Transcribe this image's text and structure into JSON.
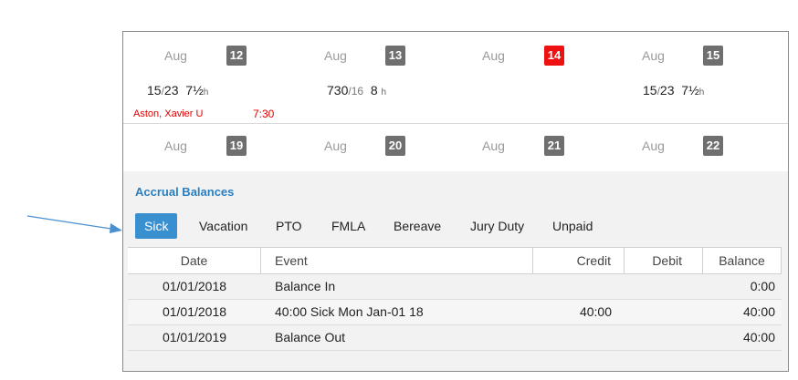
{
  "calendar": {
    "week1": [
      {
        "month": "Aug",
        "day": "12",
        "today": false
      },
      {
        "month": "Aug",
        "day": "13",
        "today": false
      },
      {
        "month": "Aug",
        "day": "14",
        "today": true
      },
      {
        "month": "Aug",
        "day": "15",
        "today": false
      }
    ],
    "shifts": [
      {
        "start": "15",
        "sep": "/",
        "end": "23",
        "hours": "7½",
        "unit": "h"
      },
      {
        "start": "730",
        "sep": "/",
        "end": "16",
        "hours": "8",
        "unit": "h"
      },
      {
        "start": "15",
        "sep": "/",
        "end": "23",
        "hours": "7½",
        "unit": "h"
      }
    ],
    "employee": {
      "name": "Aston, Xavier U",
      "time": "7:30"
    },
    "week2": [
      {
        "month": "Aug",
        "day": "19"
      },
      {
        "month": "Aug",
        "day": "20"
      },
      {
        "month": "Aug",
        "day": "21"
      },
      {
        "month": "Aug",
        "day": "22"
      }
    ]
  },
  "accrual": {
    "title": "Accrual Balances",
    "tabs": [
      "Sick",
      "Vacation",
      "PTO",
      "FMLA",
      "Bereave",
      "Jury Duty",
      "Unpaid"
    ],
    "active_tab": "Sick",
    "columns": [
      "Date",
      "Event",
      "Credit",
      "Debit",
      "Balance"
    ],
    "rows": [
      {
        "date": "01/01/2018",
        "event": "Balance In",
        "credit": "",
        "debit": "",
        "balance": "0:00"
      },
      {
        "date": "01/01/2018",
        "event": "40:00 Sick Mon Jan-01 18",
        "credit": "40:00",
        "debit": "",
        "balance": "40:00"
      },
      {
        "date": "01/01/2019",
        "event": "Balance Out",
        "credit": "",
        "debit": "",
        "balance": "40:00"
      }
    ]
  },
  "colors": {
    "accent": "#3a8fd1",
    "today": "#ee1111",
    "employee": "#e00000",
    "arrow": "#4a8fd0"
  }
}
